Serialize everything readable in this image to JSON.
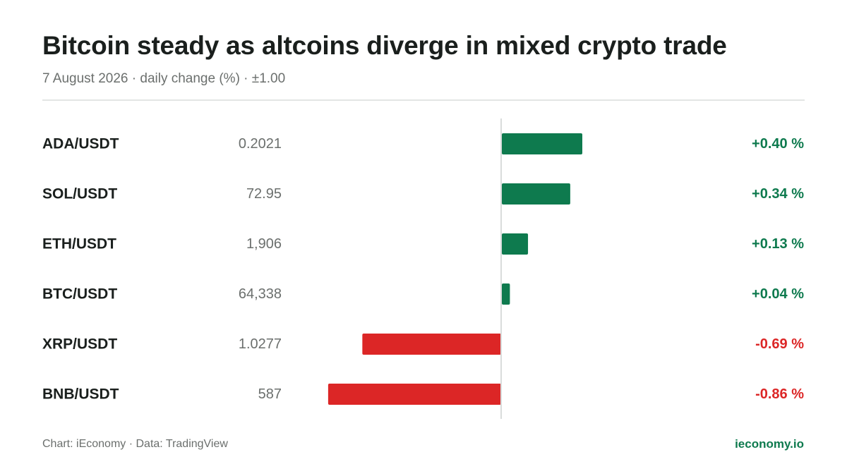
{
  "header": {
    "title": "Bitcoin steady as altcoins diverge in mixed crypto trade",
    "subtitle": "7 August 2026 · daily change (%) · ±1.00"
  },
  "footer": {
    "credit": "Chart: iEconomy · Data: TradingView",
    "site": "ieconomy.io"
  },
  "colors": {
    "positive": "#0e7a4e",
    "negative": "#dc2626",
    "axis": "#d9dcdb"
  },
  "chart_data": {
    "type": "bar",
    "orientation": "horizontal",
    "categories": [
      "ADA/USDT",
      "SOL/USDT",
      "ETH/USDT",
      "BTC/USDT",
      "XRP/USDT",
      "BNB/USDT"
    ],
    "prices": [
      "0.2021",
      "72.95",
      "1,906",
      "64,338",
      "1.0277",
      "587"
    ],
    "values": [
      0.4,
      0.34,
      0.13,
      0.04,
      -0.69,
      -0.86
    ],
    "value_labels": [
      "+0.40 %",
      "+0.34 %",
      "+0.13 %",
      "+0.04 %",
      "-0.69 %",
      "-0.86 %"
    ],
    "xlim": [
      -1.0,
      1.0
    ],
    "grid": false
  }
}
